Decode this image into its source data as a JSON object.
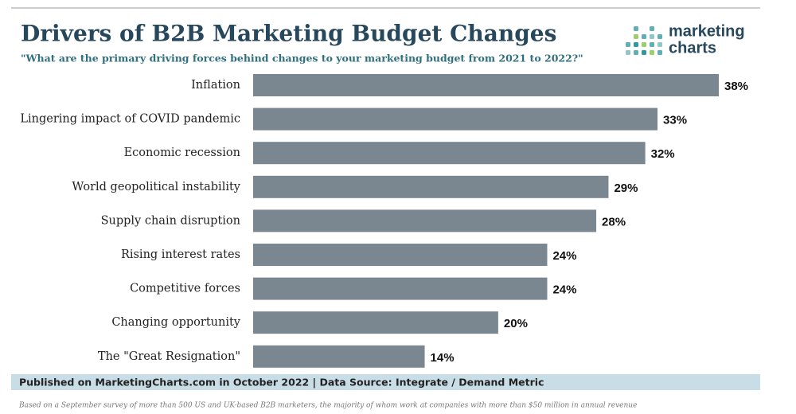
{
  "chart_data": {
    "type": "bar",
    "orientation": "horizontal",
    "title": "Drivers of B2B Marketing Budget Changes",
    "subtitle": "\"What are the primary driving forces behind changes to your marketing budget from 2021 to 2022?\"",
    "categories": [
      "Inflation",
      "Lingering impact of COVID pandemic",
      "Economic recession",
      "World geopolitical instability",
      "Supply chain disruption",
      "Rising interest rates",
      "Competitive forces",
      "Changing opportunity",
      "The \"Great Resignation\""
    ],
    "values": [
      38,
      33,
      32,
      29,
      28,
      24,
      24,
      20,
      14
    ],
    "value_labels": [
      "38%",
      "33%",
      "32%",
      "29%",
      "28%",
      "24%",
      "24%",
      "20%",
      "14%"
    ],
    "color": "#7a8791",
    "footer": "Published on MarketingCharts.com in October 2022 | Data Source: Integrate / Demand Metric",
    "note": "Based on a September survey of more than 500 US and UK-based B2B marketers, the majority of whom work at companies with more than $50 million in annual revenue"
  },
  "logo": {
    "line1": "marketing",
    "line2": "charts"
  }
}
